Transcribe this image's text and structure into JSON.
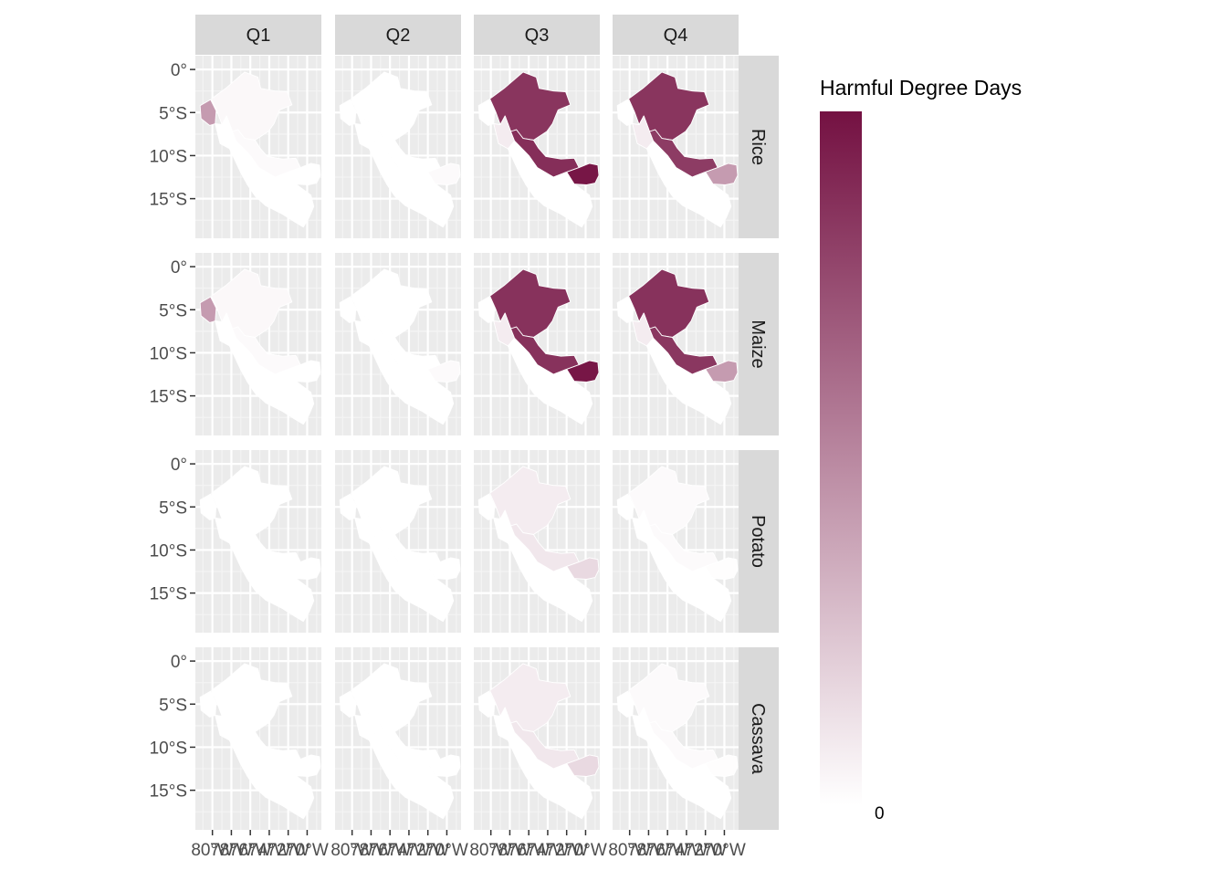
{
  "chart_data": {
    "type": "choropleth-map-facets",
    "x_ticks": [
      "80°W",
      "78°W",
      "76°W",
      "74°W",
      "72°W",
      "70°W"
    ],
    "y_ticks": [
      "0°",
      "5°S",
      "10°S",
      "15°S"
    ],
    "columns": [
      "Q1",
      "Q2",
      "Q3",
      "Q4"
    ],
    "rows": [
      "Rice",
      "Maize",
      "Potato",
      "Cassava"
    ],
    "legend": {
      "title": "Harmful Degree Days",
      "label": "0",
      "color_low": "#ffffff",
      "color_high": "#741142",
      "position": "right"
    },
    "regions": [
      "north_coast",
      "northeast",
      "central_coast",
      "central",
      "south_coast",
      "southeast"
    ],
    "intensity": {
      "Rice": {
        "Q1": [
          0.42,
          0.03,
          0.0,
          0.02,
          0.0,
          0.0
        ],
        "Q2": [
          0.0,
          0.0,
          0.0,
          0.0,
          0.0,
          0.02
        ],
        "Q3": [
          0.0,
          0.85,
          0.08,
          0.88,
          0.0,
          0.98
        ],
        "Q4": [
          0.0,
          0.85,
          0.08,
          0.82,
          0.0,
          0.42
        ]
      },
      "Maize": {
        "Q1": [
          0.42,
          0.03,
          0.0,
          0.02,
          0.0,
          0.0
        ],
        "Q2": [
          0.0,
          0.0,
          0.0,
          0.0,
          0.0,
          0.02
        ],
        "Q3": [
          0.0,
          0.86,
          0.08,
          0.86,
          0.0,
          0.98
        ],
        "Q4": [
          0.0,
          0.86,
          0.08,
          0.84,
          0.0,
          0.42
        ]
      },
      "Potato": {
        "Q1": [
          0.0,
          0.0,
          0.0,
          0.0,
          0.0,
          0.0
        ],
        "Q2": [
          0.0,
          0.0,
          0.0,
          0.0,
          0.0,
          0.0
        ],
        "Q3": [
          0.0,
          0.08,
          0.0,
          0.1,
          0.0,
          0.16
        ],
        "Q4": [
          0.0,
          0.02,
          0.0,
          0.02,
          0.0,
          0.01
        ]
      },
      "Cassava": {
        "Q1": [
          0.0,
          0.0,
          0.0,
          0.0,
          0.0,
          0.0
        ],
        "Q2": [
          0.0,
          0.0,
          0.0,
          0.0,
          0.0,
          0.0
        ],
        "Q3": [
          0.0,
          0.08,
          0.0,
          0.1,
          0.0,
          0.16
        ],
        "Q4": [
          0.0,
          0.02,
          0.0,
          0.02,
          0.0,
          0.01
        ]
      }
    }
  }
}
